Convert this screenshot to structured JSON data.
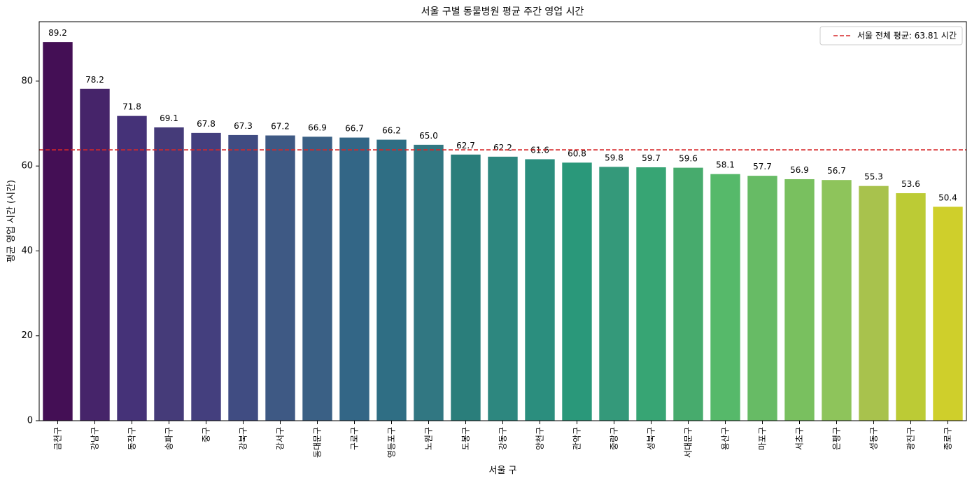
{
  "chart_data": {
    "type": "bar",
    "title": "서울 구별 동물병원 평균 주간 영업 시간",
    "xlabel": "서울 구",
    "ylabel": "평균 영업 시간 (시간)",
    "ylim": [
      0,
      94
    ],
    "yticks": [
      0,
      20,
      40,
      60,
      80
    ],
    "grid": false,
    "categories": [
      "금천구",
      "강남구",
      "동작구",
      "송파구",
      "중구",
      "강북구",
      "강서구",
      "동대문구",
      "구로구",
      "영등포구",
      "노원구",
      "도봉구",
      "강동구",
      "양천구",
      "관악구",
      "중랑구",
      "성북구",
      "서대문구",
      "용산구",
      "마포구",
      "서초구",
      "은평구",
      "성동구",
      "광진구",
      "종로구"
    ],
    "values": [
      89.2,
      78.2,
      71.8,
      69.1,
      67.8,
      67.3,
      67.2,
      66.9,
      66.7,
      66.2,
      65.0,
      62.7,
      62.2,
      61.6,
      60.8,
      59.8,
      59.7,
      59.6,
      58.1,
      57.7,
      56.9,
      56.7,
      55.3,
      53.6,
      50.4
    ],
    "value_labels": [
      "89.2",
      "78.2",
      "71.8",
      "69.1",
      "67.8",
      "67.3",
      "67.2",
      "66.9",
      "66.7",
      "66.2",
      "65.0",
      "62.7",
      "62.2",
      "61.6",
      "60.8",
      "59.8",
      "59.7",
      "59.6",
      "58.1",
      "57.7",
      "56.9",
      "56.7",
      "55.3",
      "53.6",
      "50.4"
    ],
    "colors": [
      "#440f55",
      "#46246a",
      "#453278",
      "#453b79",
      "#443f7e",
      "#404c82",
      "#3e5984",
      "#3a6085",
      "#336686",
      "#2f6e84",
      "#317782",
      "#2a7e7b",
      "#2d877f",
      "#2b8e7e",
      "#2a987a",
      "#34997a",
      "#37a574",
      "#47ab6d",
      "#56b96a",
      "#67bb65",
      "#79c05f",
      "#8ec45b",
      "#a8c24d",
      "#bccb35",
      "#cfcf2b"
    ],
    "reference_line": {
      "value": 63.81,
      "label": "서울 전체 평균: 63.81 시간",
      "color": "#d62728"
    },
    "legend_position": "top-right"
  }
}
